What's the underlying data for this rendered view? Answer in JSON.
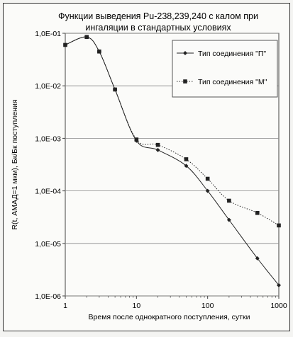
{
  "chart_data": {
    "type": "line",
    "title_line1": "Функции выведения Pu-238,239,240 с калом при",
    "title_line2": "ингаляции в стандартных условиях",
    "xlabel": "Время после однократного поступления, сутки",
    "ylabel": "R(t, АМАД=1 мкм), Бк/Бк поступления",
    "x_scale": "log",
    "y_scale": "log",
    "xlim": [
      1,
      1000
    ],
    "ylim": [
      1e-06,
      0.1
    ],
    "x_ticks": [
      {
        "value": 1,
        "label": "1"
      },
      {
        "value": 10,
        "label": "10"
      },
      {
        "value": 100,
        "label": "100"
      },
      {
        "value": 1000,
        "label": "1000"
      }
    ],
    "y_ticks": [
      {
        "value": 0.1,
        "label": "1,0E-01"
      },
      {
        "value": 0.01,
        "label": "1,0E-02"
      },
      {
        "value": 0.001,
        "label": "1,0E-03"
      },
      {
        "value": 0.0001,
        "label": "1,0E-04"
      },
      {
        "value": 1e-05,
        "label": "1,0E-05"
      },
      {
        "value": 1e-06,
        "label": "1,0E-06"
      }
    ],
    "legend_position": "top-right",
    "series": [
      {
        "name": "Тип соединения \"П\"",
        "marker": "diamond",
        "line_style": "solid",
        "color": "#222222",
        "x": [
          1,
          2,
          3,
          5,
          10,
          20,
          50,
          100,
          200,
          500,
          1000
        ],
        "y": [
          0.06,
          0.085,
          0.045,
          0.0085,
          0.0009,
          0.0006,
          0.0003,
          0.0001,
          2.8e-05,
          5.2e-06,
          1.6e-06
        ]
      },
      {
        "name": "Тип соединения \"М\"",
        "marker": "square",
        "line_style": "dotted",
        "color": "#222222",
        "x": [
          1,
          2,
          3,
          5,
          10,
          20,
          50,
          100,
          200,
          500,
          1000
        ],
        "y": [
          0.06,
          0.085,
          0.045,
          0.0085,
          0.00095,
          0.00075,
          0.0004,
          0.00017,
          6.5e-05,
          3.8e-05,
          2.2e-05
        ]
      }
    ]
  }
}
